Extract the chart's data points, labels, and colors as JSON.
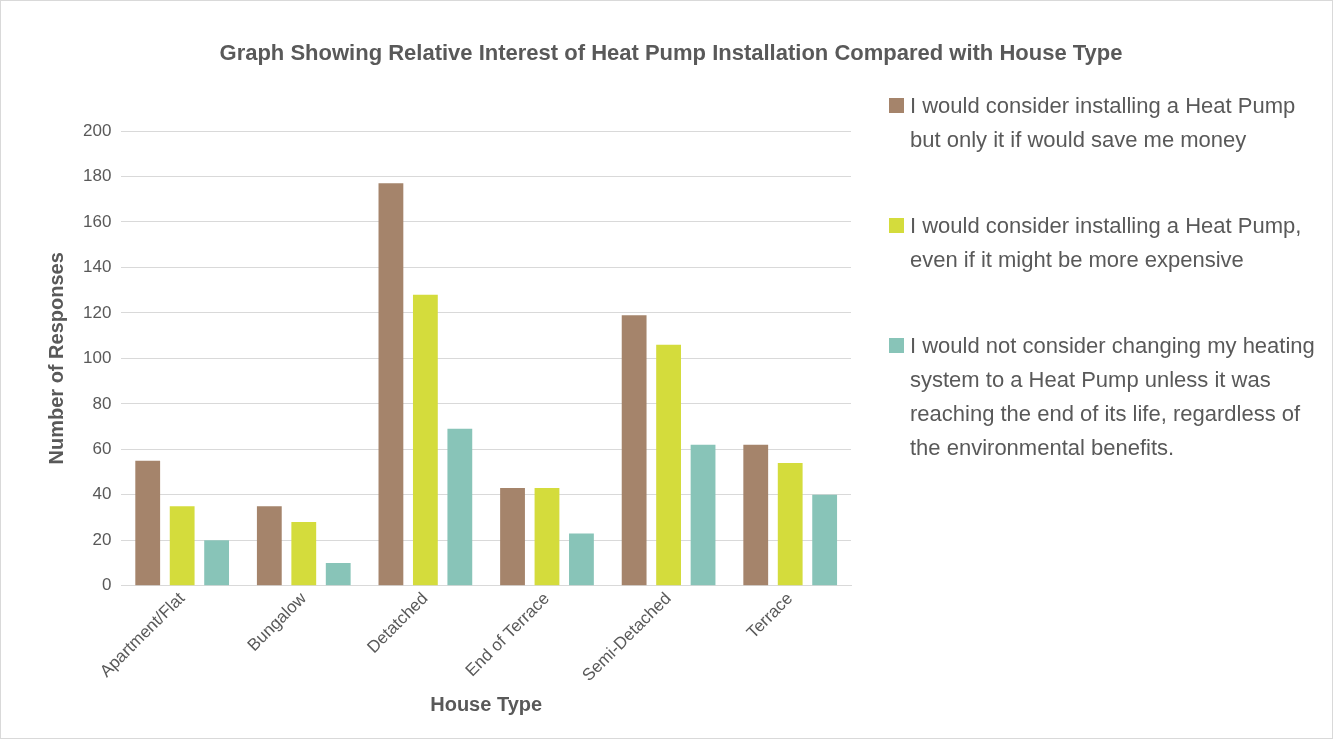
{
  "chart_data": {
    "type": "bar",
    "title": "Graph Showing Relative Interest of Heat Pump Installation Compared with House Type",
    "xlabel": "House Type",
    "ylabel": "Number of Responses",
    "categories": [
      "Apartment/Flat",
      "Bungalow",
      "Detatched",
      "End of Terrace",
      "Semi-Detached",
      "Terrace"
    ],
    "series": [
      {
        "name": "I would consider installing a Heat Pump but only it if would save me money",
        "color": "#a5846b",
        "values": [
          55,
          35,
          177,
          43,
          119,
          62
        ]
      },
      {
        "name": "I would consider installing a Heat Pump, even if it might be more expensive",
        "color": "#d4dc3c",
        "values": [
          35,
          28,
          128,
          43,
          106,
          54
        ]
      },
      {
        "name": "I would not consider changing my heating system to a Heat Pump unless it was reaching the end of its life, regardless of the environmental benefits.",
        "color": "#88c4b8",
        "values": [
          20,
          10,
          69,
          23,
          62,
          40
        ]
      }
    ],
    "ylim": [
      0,
      200
    ],
    "yticks": [
      0,
      20,
      40,
      60,
      80,
      100,
      120,
      140,
      160,
      180,
      200
    ],
    "grid": "y",
    "legend": "right"
  }
}
